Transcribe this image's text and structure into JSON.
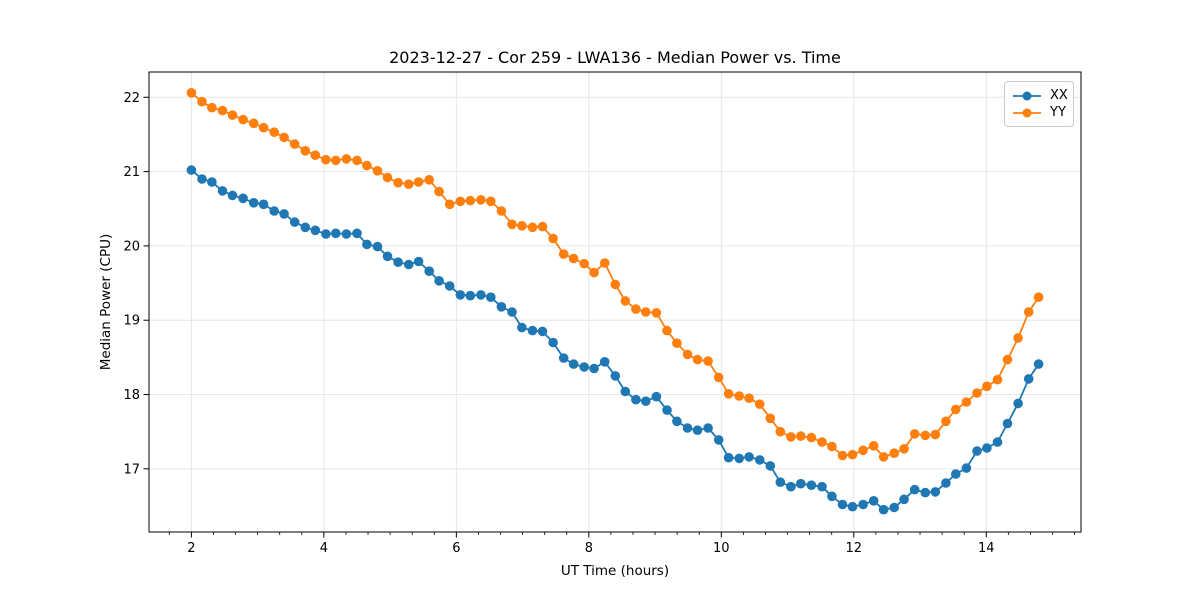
{
  "chart_data": {
    "type": "line",
    "title": "2023-12-27 - Cor 259 - LWA136 - Median Power vs. Time",
    "xlabel": "UT Time (hours)",
    "ylabel": "Median Power (CPU)",
    "xlim": [
      1.36,
      15.43
    ],
    "ylim": [
      16.15,
      22.34
    ],
    "x_ticks": [
      2,
      4,
      6,
      8,
      10,
      12,
      14
    ],
    "y_ticks": [
      17,
      18,
      19,
      20,
      21,
      22
    ],
    "x_minor_step": 0.33333,
    "grid": true,
    "grid_color": "#e6e6e6",
    "background": "#ffffff",
    "legend_position": "upper right",
    "x": [
      2.0,
      2.16,
      2.31,
      2.47,
      2.62,
      2.78,
      2.94,
      3.09,
      3.25,
      3.4,
      3.56,
      3.72,
      3.87,
      4.03,
      4.18,
      4.34,
      4.5,
      4.65,
      4.81,
      4.96,
      5.12,
      5.28,
      5.43,
      5.59,
      5.74,
      5.9,
      6.06,
      6.21,
      6.37,
      6.52,
      6.68,
      6.84,
      6.99,
      7.15,
      7.3,
      7.46,
      7.62,
      7.77,
      7.93,
      8.08,
      8.24,
      8.4,
      8.55,
      8.71,
      8.86,
      9.02,
      9.18,
      9.33,
      9.49,
      9.64,
      9.8,
      9.96,
      10.11,
      10.27,
      10.42,
      10.58,
      10.74,
      10.89,
      11.05,
      11.2,
      11.36,
      11.52,
      11.67,
      11.83,
      11.98,
      12.14,
      12.3,
      12.45,
      12.61,
      12.76,
      12.92,
      13.08,
      13.23,
      13.39,
      13.54,
      13.7,
      13.86,
      14.01,
      14.17,
      14.32,
      14.48,
      14.64,
      14.79
    ],
    "series": [
      {
        "name": "XX",
        "color": "#1f77b4",
        "values": [
          21.02,
          20.9,
          20.86,
          20.74,
          20.68,
          20.64,
          20.58,
          20.56,
          20.47,
          20.43,
          20.32,
          20.25,
          20.21,
          20.16,
          20.17,
          20.16,
          20.17,
          20.02,
          19.99,
          19.86,
          19.78,
          19.75,
          19.79,
          19.66,
          19.53,
          19.46,
          19.34,
          19.33,
          19.34,
          19.31,
          19.18,
          19.11,
          18.9,
          18.86,
          18.85,
          18.7,
          18.49,
          18.41,
          18.37,
          18.35,
          18.44,
          18.25,
          18.04,
          17.93,
          17.91,
          17.97,
          17.79,
          17.64,
          17.55,
          17.52,
          17.55,
          17.39,
          17.15,
          17.14,
          17.16,
          17.12,
          17.04,
          16.82,
          16.76,
          16.8,
          16.78,
          16.76,
          16.63,
          16.52,
          16.49,
          16.52,
          16.57,
          16.45,
          16.48,
          16.59,
          16.72,
          16.68,
          16.69,
          16.81,
          16.93,
          17.01,
          17.24,
          17.28,
          17.36,
          17.61,
          17.88,
          18.21,
          18.41
        ]
      },
      {
        "name": "YY",
        "color": "#ff7f0e",
        "values": [
          22.06,
          21.94,
          21.86,
          21.82,
          21.76,
          21.7,
          21.65,
          21.59,
          21.53,
          21.46,
          21.37,
          21.28,
          21.22,
          21.16,
          21.15,
          21.17,
          21.15,
          21.08,
          21.01,
          20.92,
          20.85,
          20.83,
          20.86,
          20.89,
          20.73,
          20.56,
          20.6,
          20.61,
          20.62,
          20.6,
          20.47,
          20.29,
          20.27,
          20.25,
          20.26,
          20.1,
          19.89,
          19.83,
          19.76,
          19.64,
          19.77,
          19.48,
          19.26,
          19.15,
          19.11,
          19.1,
          18.86,
          18.69,
          18.54,
          18.47,
          18.45,
          18.23,
          18.01,
          17.98,
          17.95,
          17.87,
          17.68,
          17.5,
          17.43,
          17.44,
          17.42,
          17.36,
          17.3,
          17.18,
          17.19,
          17.25,
          17.31,
          17.16,
          17.21,
          17.27,
          17.47,
          17.45,
          17.46,
          17.64,
          17.8,
          17.9,
          18.02,
          18.11,
          18.2,
          18.47,
          18.76,
          19.11,
          19.31
        ]
      }
    ]
  }
}
